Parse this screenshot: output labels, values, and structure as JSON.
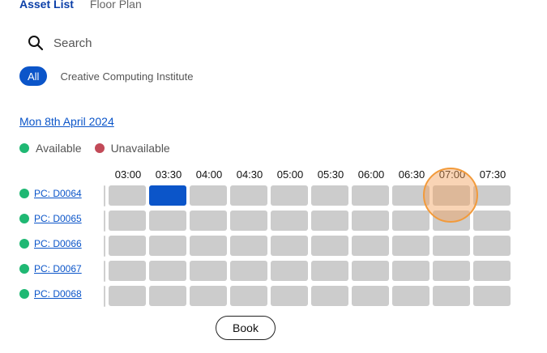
{
  "tabs": [
    {
      "label": "Asset List",
      "active": true
    },
    {
      "label": "Floor Plan",
      "active": false
    }
  ],
  "search": {
    "placeholder": "Search",
    "value": ""
  },
  "filters": {
    "all_label": "All",
    "location_label": "Creative Computing Institute"
  },
  "date_label": "Mon 8th April 2024",
  "legend": {
    "available": "Available",
    "unavailable": "Unavailable"
  },
  "colors": {
    "available": "#1fb873",
    "unavailable": "#c24a58",
    "accent": "#0b55c9",
    "slot": "#cccccc"
  },
  "times": [
    "03:00",
    "03:30",
    "04:00",
    "04:30",
    "05:00",
    "05:30",
    "06:00",
    "06:30",
    "07:00",
    "07:30"
  ],
  "assets": [
    {
      "name": "PC: D0064",
      "selected_slot": 1
    },
    {
      "name": "PC: D0065",
      "selected_slot": null
    },
    {
      "name": "PC: D0066",
      "selected_slot": null
    },
    {
      "name": "PC: D0067",
      "selected_slot": null
    },
    {
      "name": "PC: D0068",
      "selected_slot": null
    }
  ],
  "book_label": "Book"
}
